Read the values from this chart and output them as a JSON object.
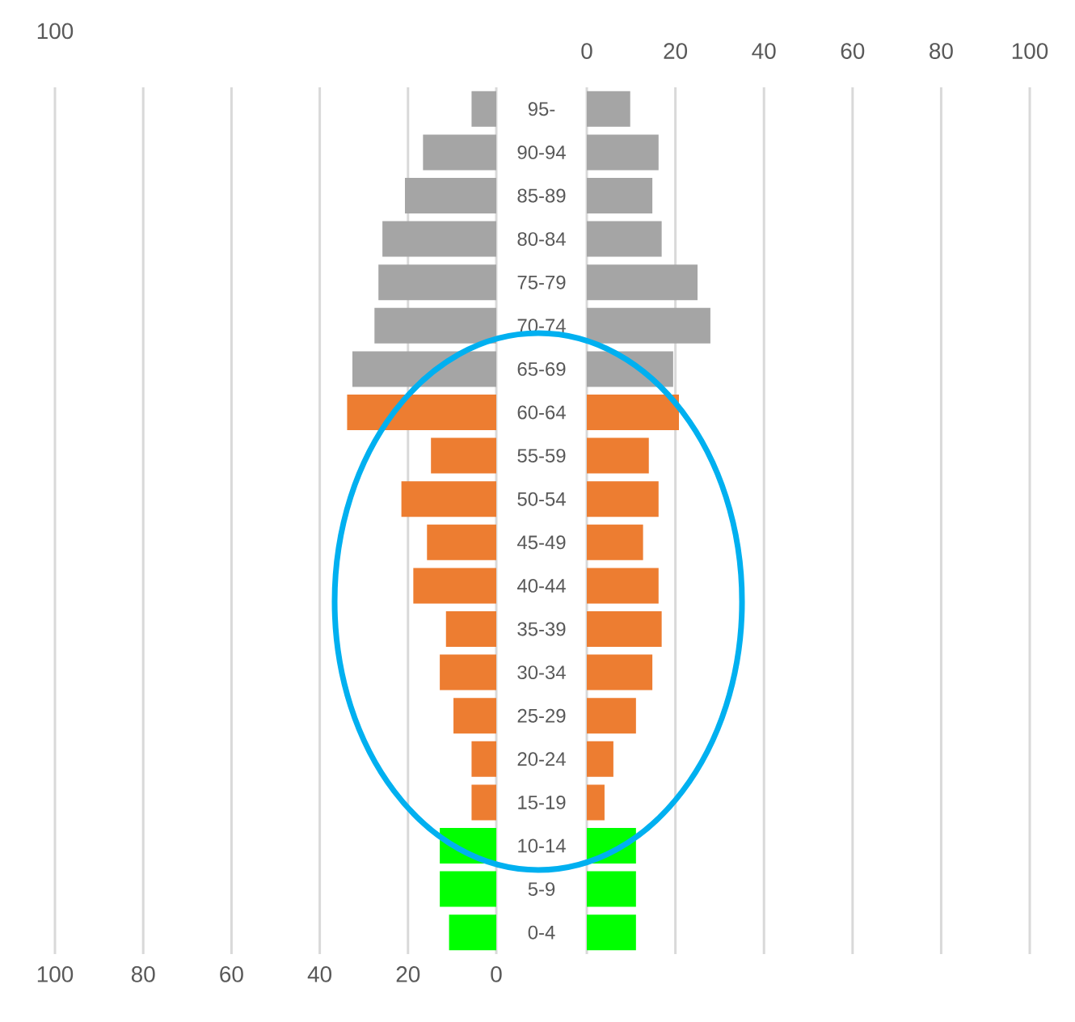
{
  "chart_data": [
    {
      "type": "bar",
      "orientation": "horizontal",
      "categories": [
        null,
        null,
        null,
        null,
        null,
        null,
        null,
        null,
        null,
        null,
        null,
        null,
        null,
        null,
        null,
        null,
        null,
        null,
        null,
        null
      ],
      "values": [
        5.6,
        16.6,
        20.7,
        25.8,
        26.7,
        27.6,
        32.6,
        33.8,
        14.8,
        21.5,
        15.7,
        18.8,
        11.4,
        12.8,
        9.7,
        5.6,
        5.6,
        12.8,
        12.8,
        10.7
      ],
      "colors": [
        "#a5a5a5",
        "#a5a5a5",
        "#a5a5a5",
        "#a5a5a5",
        "#a5a5a5",
        "#a5a5a5",
        "#a5a5a5",
        "#ed7d31",
        "#ed7d31",
        "#ed7d31",
        "#ed7d31",
        "#ed7d31",
        "#ed7d31",
        "#ed7d31",
        "#ed7d31",
        "#ed7d31",
        "#ed7d31",
        "#00ff00",
        "#00ff00",
        "#00ff00"
      ],
      "xlim": [
        100,
        0
      ],
      "xticks": [
        100,
        80,
        60,
        40,
        20,
        0
      ],
      "annotations": [
        "100"
      ],
      "grid": "x",
      "tick_labels": "x"
    },
    {
      "type": "bar",
      "orientation": "horizontal",
      "categories": [
        "95-",
        "90-94",
        "85-89",
        "80-84",
        "75-79",
        "70-74",
        "65-69",
        "60-64",
        "55-59",
        "50-54",
        "45-49",
        "40-44",
        "35-39",
        "30-34",
        "25-29",
        "20-24",
        "15-19",
        "10-14",
        "5-9",
        "0-4"
      ],
      "values": [
        9.8,
        16.2,
        14.8,
        16.9,
        25.0,
        27.9,
        19.5,
        20.8,
        14.0,
        16.2,
        12.7,
        16.2,
        16.9,
        14.8,
        11.1,
        6.0,
        4.0,
        11.1,
        11.1,
        11.1
      ],
      "colors": [
        "#a5a5a5",
        "#a5a5a5",
        "#a5a5a5",
        "#a5a5a5",
        "#a5a5a5",
        "#a5a5a5",
        "#a5a5a5",
        "#ed7d31",
        "#ed7d31",
        "#ed7d31",
        "#ed7d31",
        "#ed7d31",
        "#ed7d31",
        "#ed7d31",
        "#ed7d31",
        "#ed7d31",
        "#ed7d31",
        "#00ff00",
        "#00ff00",
        "#00ff00"
      ],
      "xlim": [
        0,
        100
      ],
      "xticks": [
        0,
        20,
        40,
        60,
        80,
        100
      ],
      "grid": "x"
    }
  ]
}
